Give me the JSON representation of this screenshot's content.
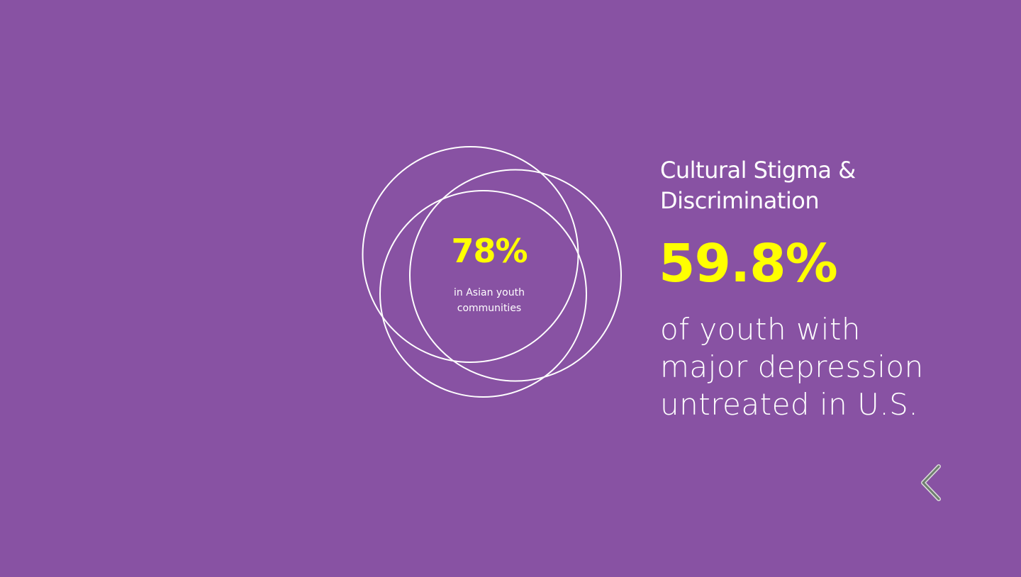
{
  "circle_stat": {
    "value": "78%",
    "caption_lines": [
      "in Asian youth",
      "communities"
    ]
  },
  "heading_lines": [
    "Cultural Stigma &",
    "Discrimination"
  ],
  "stat": "59.8%",
  "description_lines": [
    "of youth with",
    "major depression",
    "untreated in U.S."
  ]
}
